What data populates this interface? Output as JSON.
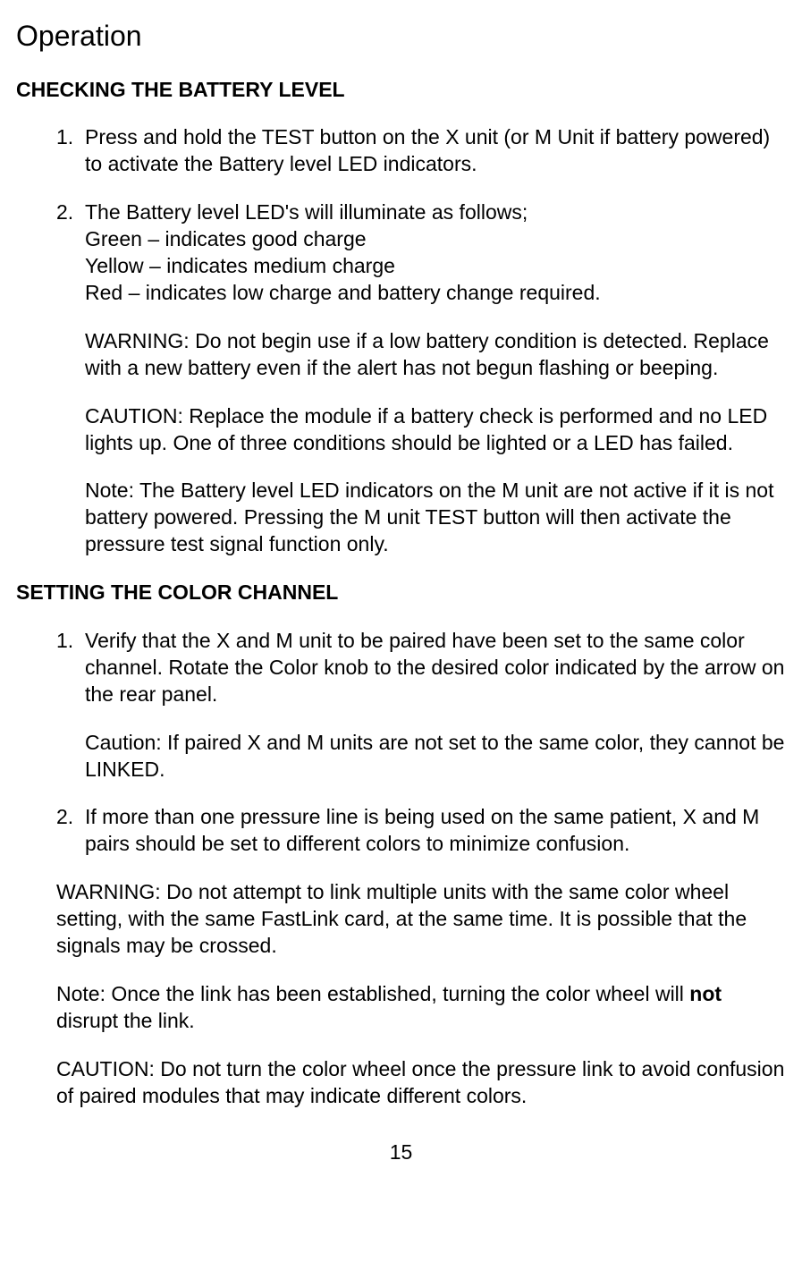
{
  "title": "Operation",
  "section1": {
    "heading": "CHECKING THE BATTERY LEVEL",
    "item1_num": "1.",
    "item1_text": "Press and hold the TEST button on the X unit (or M Unit if battery powered) to activate the Battery level LED indicators.",
    "item2_num": "2.",
    "item2_l1": "The Battery level LED's will illuminate as follows;",
    "item2_l2": "Green – indicates good charge",
    "item2_l3": "Yellow – indicates medium charge",
    "item2_l4": "Red – indicates low charge and battery change required.",
    "warning": "WARNING: Do not begin use if a low battery condition is detected.  Replace with a new battery even if the alert has not begun flashing or beeping.",
    "caution": "CAUTION: Replace the module if a battery check is performed and no LED lights up.  One of three conditions should be lighted or a LED has failed.",
    "note": "Note: The Battery level LED indicators on the M unit are not active if it is not battery powered.  Pressing the M unit TEST button will then activate the pressure test signal function only."
  },
  "section2": {
    "heading": "SETTING THE COLOR CHANNEL",
    "item1_num": "1.",
    "item1_text": "Verify that the X and M unit to be paired have been set to the same color channel.  Rotate the Color knob to the desired color indicated by the arrow on the rear panel.",
    "item1_caution": "Caution: If paired X and M units are not set to the same color, they cannot be LINKED.",
    "item2_num": "2.",
    "item2_text": "If more than one pressure line is being used on the same patient, X and M pairs should be set to different colors to minimize confusion.",
    "warning": "WARNING: Do not attempt to link multiple units with the same color wheel setting, with the same FastLink card, at the same time.  It is possible that the signals may be crossed.",
    "note_pre": "Note: Once the link has been established, turning the color wheel will ",
    "note_bold": "not",
    "note_post": " disrupt the link.",
    "caution": "CAUTION: Do not turn the color wheel once the pressure link to avoid confusion of paired modules that may indicate different colors."
  },
  "page_number": "15"
}
